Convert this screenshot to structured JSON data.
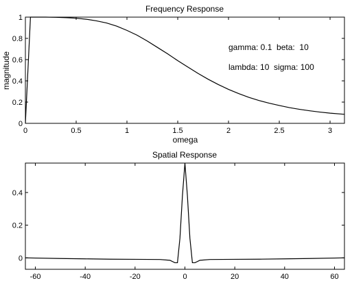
{
  "chart_data": [
    {
      "type": "line",
      "title": "Frequency Response",
      "xlabel": "omega",
      "ylabel": "magnitude",
      "xlim": [
        0,
        3.1416
      ],
      "ylim": [
        0,
        1.0
      ],
      "xticks": [
        "0",
        "0.5",
        "1",
        "1.5",
        "2",
        "2.5",
        "3"
      ],
      "yticks": [
        "0",
        "0.2",
        "0.4",
        "0.6",
        "0.8",
        "1"
      ],
      "grid": false,
      "annotations": [
        "gamma: 0.1  beta:  10",
        "lambda: 10  sigma: 100"
      ],
      "series": [
        {
          "x": [
            0,
            0.05,
            0.1,
            0.2,
            0.3,
            0.4,
            0.5,
            0.6,
            0.7,
            0.8,
            0.9,
            1.0,
            1.1,
            1.2,
            1.3,
            1.4,
            1.5,
            1.6,
            1.7,
            1.8,
            1.9,
            2.0,
            2.1,
            2.2,
            2.3,
            2.4,
            2.5,
            2.6,
            2.7,
            2.8,
            2.9,
            3.0,
            3.1416
          ],
          "y": [
            0,
            1.0,
            1.0,
            1.0,
            0.998,
            0.995,
            0.99,
            0.98,
            0.965,
            0.945,
            0.915,
            0.875,
            0.83,
            0.775,
            0.715,
            0.655,
            0.59,
            0.53,
            0.47,
            0.415,
            0.365,
            0.32,
            0.28,
            0.245,
            0.215,
            0.19,
            0.168,
            0.148,
            0.132,
            0.118,
            0.106,
            0.096,
            0.085
          ]
        }
      ]
    },
    {
      "type": "line",
      "title": "Spatial Response",
      "xlim": [
        -64,
        64
      ],
      "ylim": [
        -0.07,
        0.58
      ],
      "xticks": [
        "-60",
        "-40",
        "-20",
        "0",
        "20",
        "40",
        "60"
      ],
      "yticks": [
        "0",
        "0.2",
        "0.4"
      ],
      "grid": false,
      "series": [
        {
          "x": [
            -64,
            -50,
            -40,
            -30,
            -20,
            -10,
            -6,
            -4,
            -3,
            -2,
            -1,
            0,
            1,
            2,
            3,
            4,
            6,
            10,
            20,
            30,
            40,
            50,
            64
          ],
          "y": [
            0,
            -0.004,
            -0.006,
            -0.008,
            -0.009,
            -0.01,
            -0.015,
            -0.03,
            -0.03,
            0.12,
            0.38,
            0.58,
            0.38,
            0.12,
            -0.03,
            -0.03,
            -0.015,
            -0.01,
            -0.009,
            -0.008,
            -0.006,
            -0.004,
            0
          ]
        }
      ]
    }
  ]
}
